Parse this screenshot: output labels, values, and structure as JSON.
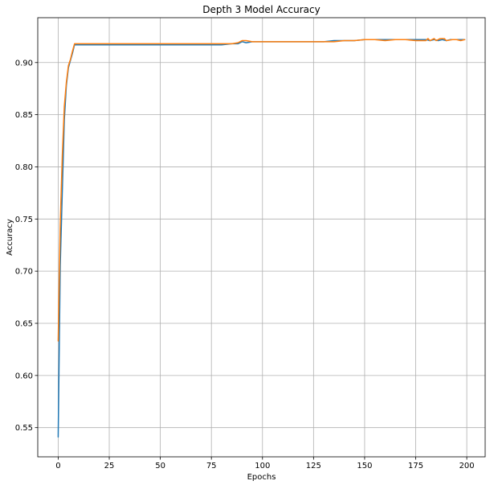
{
  "chart_data": {
    "type": "line",
    "title": "Depth 3 Model Accuracy",
    "xlabel": "Epochs",
    "ylabel": "Accuracy",
    "xlim": [
      -10,
      209
    ],
    "ylim": [
      0.522,
      0.943
    ],
    "xticks": [
      0,
      25,
      50,
      75,
      100,
      125,
      150,
      175,
      200
    ],
    "yticks": [
      0.55,
      0.6,
      0.65,
      0.7,
      0.75,
      0.8,
      0.85,
      0.9
    ],
    "ytick_labels": [
      "0.55",
      "0.60",
      "0.65",
      "0.70",
      "0.75",
      "0.80",
      "0.85",
      "0.90"
    ],
    "grid": true,
    "series": [
      {
        "color": "#1f77b4",
        "points": [
          [
            0,
            0.541
          ],
          [
            1,
            0.705
          ],
          [
            2,
            0.776
          ],
          [
            3,
            0.845
          ],
          [
            4,
            0.878
          ],
          [
            5,
            0.895
          ],
          [
            6,
            0.902
          ],
          [
            7,
            0.909
          ],
          [
            8,
            0.917
          ],
          [
            20,
            0.917
          ],
          [
            40,
            0.917
          ],
          [
            60,
            0.917
          ],
          [
            78,
            0.917
          ],
          [
            80,
            0.917
          ],
          [
            85,
            0.918
          ],
          [
            88,
            0.918
          ],
          [
            90,
            0.92
          ],
          [
            92,
            0.919
          ],
          [
            95,
            0.92
          ],
          [
            100,
            0.92
          ],
          [
            110,
            0.92
          ],
          [
            120,
            0.92
          ],
          [
            130,
            0.92
          ],
          [
            135,
            0.921
          ],
          [
            140,
            0.921
          ],
          [
            145,
            0.921
          ],
          [
            150,
            0.922
          ],
          [
            155,
            0.922
          ],
          [
            160,
            0.922
          ],
          [
            165,
            0.922
          ],
          [
            170,
            0.922
          ],
          [
            175,
            0.922
          ],
          [
            180,
            0.922
          ],
          [
            182,
            0.921
          ],
          [
            184,
            0.922
          ],
          [
            186,
            0.921
          ],
          [
            188,
            0.922
          ],
          [
            190,
            0.921
          ],
          [
            192,
            0.922
          ],
          [
            195,
            0.922
          ],
          [
            199,
            0.922
          ]
        ]
      },
      {
        "color": "#ff7f0e",
        "points": [
          [
            0,
            0.633
          ],
          [
            1,
            0.745
          ],
          [
            2,
            0.81
          ],
          [
            3,
            0.858
          ],
          [
            4,
            0.881
          ],
          [
            5,
            0.897
          ],
          [
            6,
            0.903
          ],
          [
            7,
            0.911
          ],
          [
            8,
            0.918
          ],
          [
            20,
            0.918
          ],
          [
            40,
            0.918
          ],
          [
            60,
            0.918
          ],
          [
            78,
            0.918
          ],
          [
            80,
            0.918
          ],
          [
            85,
            0.918
          ],
          [
            88,
            0.919
          ],
          [
            90,
            0.921
          ],
          [
            92,
            0.921
          ],
          [
            95,
            0.92
          ],
          [
            100,
            0.92
          ],
          [
            110,
            0.92
          ],
          [
            120,
            0.92
          ],
          [
            130,
            0.92
          ],
          [
            135,
            0.92
          ],
          [
            140,
            0.921
          ],
          [
            145,
            0.921
          ],
          [
            150,
            0.922
          ],
          [
            155,
            0.922
          ],
          [
            160,
            0.921
          ],
          [
            165,
            0.922
          ],
          [
            170,
            0.922
          ],
          [
            175,
            0.921
          ],
          [
            180,
            0.921
          ],
          [
            181,
            0.923
          ],
          [
            182,
            0.921
          ],
          [
            184,
            0.923
          ],
          [
            185,
            0.921
          ],
          [
            187,
            0.923
          ],
          [
            189,
            0.923
          ],
          [
            190,
            0.921
          ],
          [
            193,
            0.922
          ],
          [
            195,
            0.922
          ],
          [
            197,
            0.921
          ],
          [
            199,
            0.922
          ]
        ]
      }
    ]
  }
}
